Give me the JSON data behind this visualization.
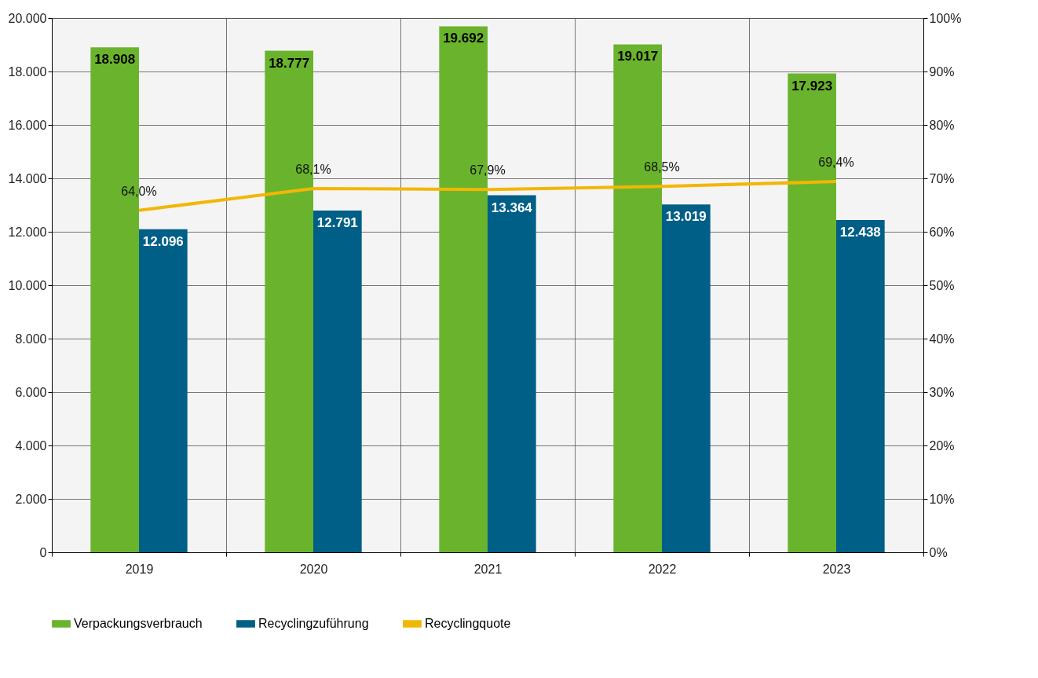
{
  "chart_data": {
    "type": "bar",
    "categories": [
      "2019",
      "2020",
      "2021",
      "2022",
      "2023"
    ],
    "series": [
      {
        "name": "Verpackungsverbrauch",
        "color": "#6ab42d",
        "values": [
          18908,
          18777,
          19692,
          19017,
          17923
        ],
        "value_labels": [
          "18.908",
          "18.777",
          "19.692",
          "19.017",
          "17.923"
        ]
      },
      {
        "name": "Recyclingzuführung",
        "color": "#005f87",
        "values": [
          12096,
          12791,
          13364,
          13019,
          12438
        ],
        "value_labels": [
          "12.096",
          "12.791",
          "13.364",
          "13.019",
          "12.438"
        ]
      },
      {
        "name": "Recyclingquote",
        "type": "line",
        "axis": "y2",
        "color": "#f2b705",
        "values": [
          64.0,
          68.1,
          67.9,
          68.5,
          69.4
        ],
        "value_labels": [
          "64,0%",
          "68,1%",
          "67,9%",
          "68,5%",
          "69,4%"
        ]
      }
    ],
    "ylim": [
      0,
      20000
    ],
    "yticks": [
      {
        "value": 0,
        "label": "0"
      },
      {
        "value": 2000,
        "label": "2.000"
      },
      {
        "value": 4000,
        "label": "4.000"
      },
      {
        "value": 6000,
        "label": "6.000"
      },
      {
        "value": 8000,
        "label": "8.000"
      },
      {
        "value": 10000,
        "label": "10.000"
      },
      {
        "value": 12000,
        "label": "12.000"
      },
      {
        "value": 14000,
        "label": "14.000"
      },
      {
        "value": 16000,
        "label": "16.000"
      },
      {
        "value": 18000,
        "label": "18.000"
      },
      {
        "value": 20000,
        "label": "20.000"
      }
    ],
    "y2lim": [
      0,
      100
    ],
    "y2ticks": [
      {
        "value": 0,
        "label": "0%"
      },
      {
        "value": 10,
        "label": "10%"
      },
      {
        "value": 20,
        "label": "20%"
      },
      {
        "value": 30,
        "label": "30%"
      },
      {
        "value": 40,
        "label": "40%"
      },
      {
        "value": 50,
        "label": "50%"
      },
      {
        "value": 60,
        "label": "60%"
      },
      {
        "value": 70,
        "label": "70%"
      },
      {
        "value": 80,
        "label": "80%"
      },
      {
        "value": 90,
        "label": "90%"
      },
      {
        "value": 100,
        "label": "100%"
      }
    ],
    "grid": true,
    "legend": "bottom"
  }
}
